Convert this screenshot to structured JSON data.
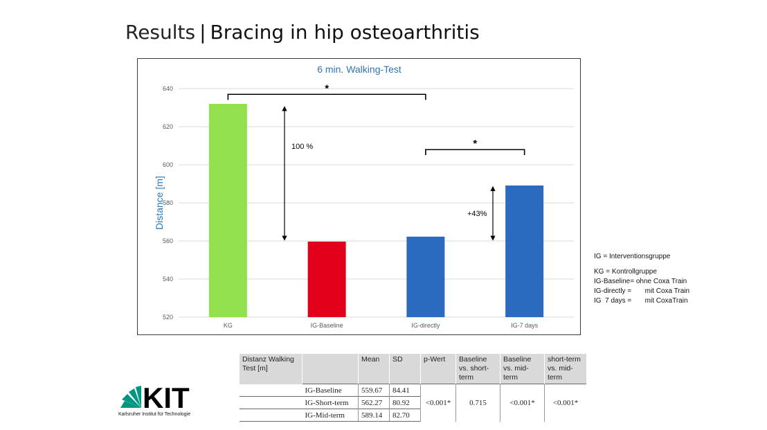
{
  "slide": {
    "title_light": "Results",
    "title_sep": "|",
    "title_main": "Bracing in hip osteoarthritis"
  },
  "chart_data": {
    "type": "bar",
    "title": "6 min. Walking-Test",
    "ylabel": "Distance [m]",
    "xlabel": "",
    "categories": [
      "KG",
      "IG-Baseline",
      "IG-directly",
      "IG-7 days"
    ],
    "values": [
      632,
      559.67,
      562.27,
      589.14
    ],
    "colors": [
      "#92e250",
      "#e3001b",
      "#2b6bbf",
      "#2b6bbf"
    ],
    "ylim": [
      520,
      640
    ],
    "yticks": [
      520,
      540,
      560,
      580,
      600,
      620,
      640
    ],
    "grid": true,
    "legend": "none",
    "annotations": [
      {
        "text": "*",
        "type": "bracket",
        "from": "KG",
        "to": "IG-directly",
        "y": 637
      },
      {
        "text": "*",
        "type": "bracket",
        "from": "IG-directly",
        "to": "IG-7 days",
        "y": 608
      },
      {
        "text": "100 %",
        "type": "arrow",
        "y_from": 560,
        "y_to": 631
      },
      {
        "text": "+43%",
        "type": "arrow",
        "y_from": 560,
        "y_to": 589
      }
    ]
  },
  "legend": {
    "lines": [
      "IG = Interventionsgruppe",
      "KG = Kontrollgruppe",
      "IG-Baseline= ohne Coxa Train",
      "IG-directly =       mit Coxa Train",
      "IG  7 days =       mit CoxaTrain"
    ]
  },
  "table": {
    "headers": [
      "Distanz Walking Test [m]",
      "",
      "Mean",
      "SD",
      "p-Wert",
      "Baseline vs. short-term",
      "Baseline vs. mid-term",
      "short-term vs. mid-term"
    ],
    "rows": [
      {
        "label": "IG-Baseline",
        "mean": "559.67",
        "sd": "84.41"
      },
      {
        "label": "IG-Short-term",
        "mean": "562.27",
        "sd": "80.92"
      },
      {
        "label": "IG-Mid-term",
        "mean": "589.14",
        "sd": "82.70"
      }
    ],
    "p_wert": "<0.001*",
    "base_short": "0.715",
    "base_mid": "<0.001*",
    "short_mid": "<0.001*"
  },
  "logo": {
    "text": "KIT",
    "subtitle": "Karlsruher Institut für Technologie",
    "color": "#009682"
  }
}
